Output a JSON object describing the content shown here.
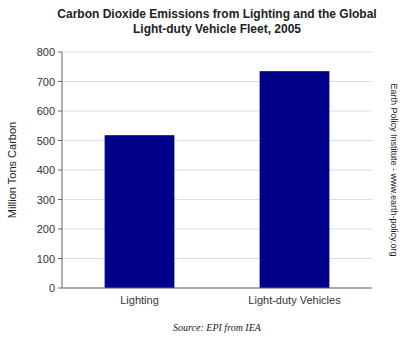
{
  "chart_data": {
    "type": "bar",
    "title": "Carbon Dioxide Emissions from Lighting and the Global\nLight-duty Vehicle Fleet, 2005",
    "categories": [
      "Lighting",
      "Light-duty Vehicles"
    ],
    "values": [
      518,
      735
    ],
    "color": "#00008B",
    "ylabel": "Million Tons Carbon",
    "ylim": [
      0,
      800
    ],
    "yticks": [
      0,
      100,
      200,
      300,
      400,
      500,
      600,
      700,
      800
    ],
    "grid": true,
    "annotations": [
      "Source: EPI from IEA",
      "Earth Policy Institute - www.earth-policy.org"
    ]
  }
}
